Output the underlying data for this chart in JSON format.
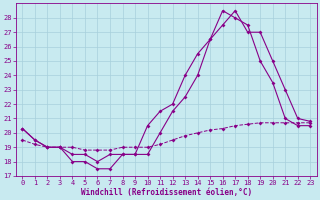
{
  "xlabel": "Windchill (Refroidissement éolien,°C)",
  "xlim": [
    -0.5,
    23.5
  ],
  "ylim": [
    17,
    29
  ],
  "xticks": [
    0,
    1,
    2,
    3,
    4,
    5,
    6,
    7,
    8,
    9,
    10,
    11,
    12,
    13,
    14,
    15,
    16,
    17,
    18,
    19,
    20,
    21,
    22,
    23
  ],
  "yticks": [
    17,
    18,
    19,
    20,
    21,
    22,
    23,
    24,
    25,
    26,
    27,
    28
  ],
  "bg_color": "#c8eaf0",
  "grid_color": "#a8d0dc",
  "line_color": "#880088",
  "line1_y": [
    20.3,
    19.5,
    19.0,
    19.0,
    18.0,
    18.0,
    17.5,
    17.5,
    18.5,
    18.5,
    20.5,
    21.5,
    22.0,
    24.0,
    25.5,
    26.5,
    28.5,
    28.0,
    27.5,
    25.0,
    23.5,
    21.0,
    20.5,
    20.5
  ],
  "line2_y": [
    20.3,
    19.5,
    19.0,
    19.0,
    18.5,
    18.5,
    18.0,
    18.5,
    18.5,
    18.5,
    18.5,
    20.0,
    21.5,
    22.5,
    24.0,
    26.5,
    27.5,
    28.5,
    27.0,
    27.0,
    25.0,
    23.0,
    21.0,
    20.8
  ],
  "line3_y": [
    19.5,
    19.2,
    19.0,
    19.0,
    19.0,
    18.8,
    18.8,
    18.8,
    19.0,
    19.0,
    19.0,
    19.2,
    19.5,
    19.8,
    20.0,
    20.2,
    20.3,
    20.5,
    20.6,
    20.7,
    20.7,
    20.7,
    20.7,
    20.7
  ],
  "markersize": 2
}
